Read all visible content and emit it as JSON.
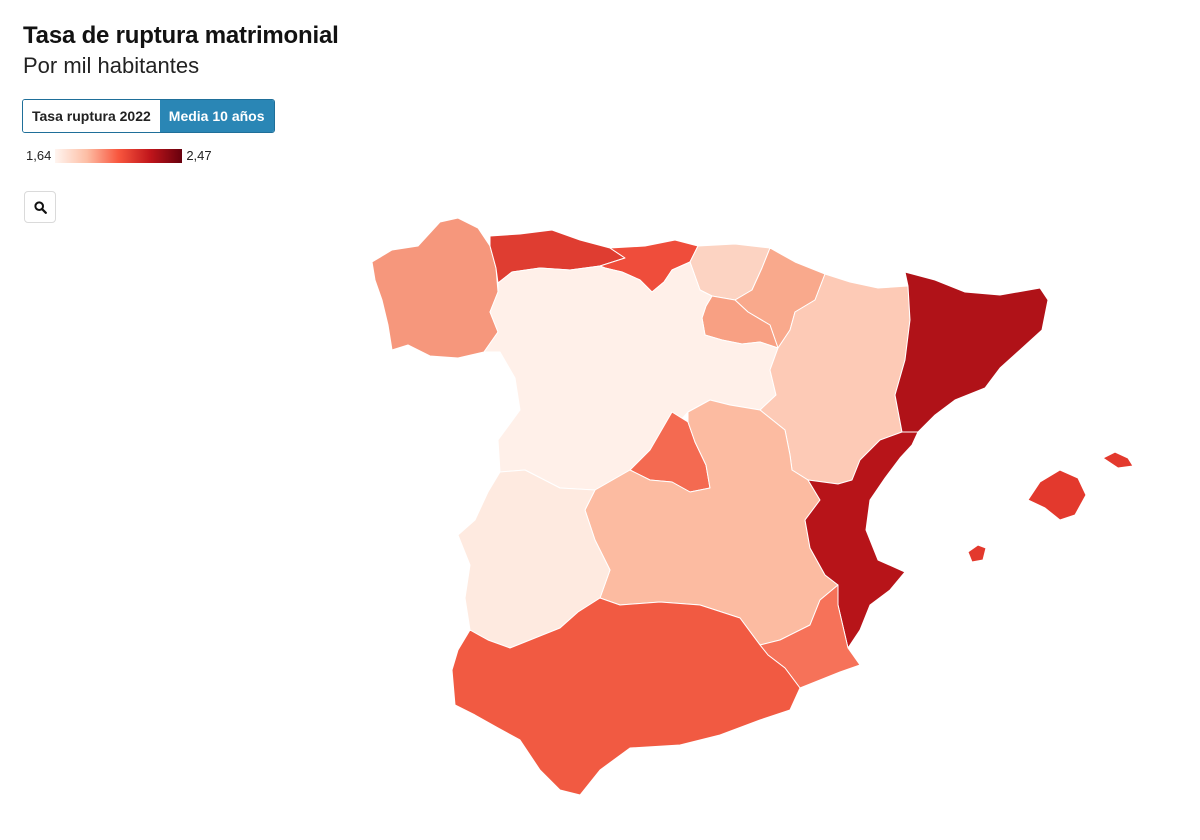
{
  "title": "Tasa de ruptura matrimonial",
  "subtitle": "Por mil habitantes",
  "toggle": {
    "option_1": "Tasa ruptura 2022",
    "option_2": "Media 10 años",
    "selected": "Media 10 años"
  },
  "legend": {
    "min_label": "1,64",
    "max_label": "2,47",
    "min_value": 1.64,
    "max_value": 2.47
  },
  "search": {
    "icon": "search-icon"
  },
  "map_data": {
    "type": "choropleth",
    "regions": [
      {
        "name": "Galicia",
        "color": "#f6977c"
      },
      {
        "name": "Asturias",
        "color": "#df3d31"
      },
      {
        "name": "Cantabria",
        "color": "#ef4d3b"
      },
      {
        "name": "País Vasco",
        "color": "#fcd3c2"
      },
      {
        "name": "Navarra",
        "color": "#f9a98c"
      },
      {
        "name": "La Rioja",
        "color": "#f8a083"
      },
      {
        "name": "Castilla y León",
        "color": "#fff0e9"
      },
      {
        "name": "Aragón",
        "color": "#fdcab6"
      },
      {
        "name": "Cataluña",
        "color": "#b01218"
      },
      {
        "name": "Madrid",
        "color": "#f46a51"
      },
      {
        "name": "Castilla-La Mancha",
        "color": "#fcbba1"
      },
      {
        "name": "Extremadura",
        "color": "#feeae0"
      },
      {
        "name": "Comunitat Valenciana",
        "color": "#b71419"
      },
      {
        "name": "Región de Murcia",
        "color": "#f67259"
      },
      {
        "name": "Andalucía",
        "color": "#f15a42"
      },
      {
        "name": "Illes Balears",
        "color": "#e3392d"
      }
    ]
  }
}
